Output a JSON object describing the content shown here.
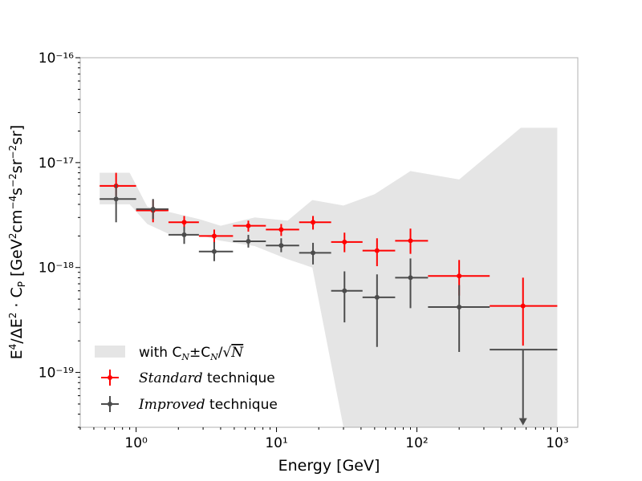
{
  "chart_data": {
    "type": "scatter",
    "title": "",
    "xlabel": "Energy [GeV]",
    "ylabel": "E⁴/ΔE² · C_P [GeV²cm⁻⁴s⁻²sr⁻²sr]",
    "xscale": "log",
    "yscale": "log",
    "xlim": [
      0.4,
      1400
    ],
    "ylim": [
      3e-20,
      1e-16
    ],
    "x_ticks": [
      {
        "value": 1,
        "label": "10⁰"
      },
      {
        "value": 10,
        "label": "10¹"
      },
      {
        "value": 100,
        "label": "10²"
      },
      {
        "value": 1000,
        "label": "10³"
      }
    ],
    "y_ticks": [
      {
        "value": 1e-19,
        "label": "10⁻¹⁹"
      },
      {
        "value": 1e-18,
        "label": "10⁻¹⁸"
      },
      {
        "value": 1e-17,
        "label": "10⁻¹⁷"
      },
      {
        "value": 1e-16,
        "label": "10⁻¹⁶"
      }
    ],
    "band": {
      "name": "with C_N±C_N/√N",
      "color": "#e5e5e5",
      "x": [
        0.55,
        0.9,
        1.2,
        1.7,
        2.8,
        4.0,
        7.0,
        12.0,
        18.0,
        30.0,
        50.0,
        90.0,
        200.0,
        550.0,
        1000.0
      ],
      "upper": [
        8e-18,
        8e-18,
        3.8e-18,
        3.4e-18,
        2.9e-18,
        2.5e-18,
        3e-18,
        2.8e-18,
        4.4e-18,
        3.9e-18,
        5e-18,
        8.3e-18,
        6.9e-18,
        2.15e-17,
        2.15e-17
      ],
      "lower": [
        4e-18,
        4e-18,
        2.6e-18,
        2.1e-18,
        2.05e-18,
        1.8e-18,
        1.6e-18,
        1.2e-18,
        1e-18,
        3e-20,
        3e-20,
        3e-20,
        3e-20,
        3e-20,
        3e-20
      ]
    },
    "series": [
      {
        "name": "Standard",
        "legend_suffix": " technique",
        "color": "#ff0000",
        "points": [
          {
            "x": 0.72,
            "xlo": 0.55,
            "xhi": 1.0,
            "y": 6e-18,
            "ylo": 4.8e-18,
            "yhi": 8e-18
          },
          {
            "x": 1.32,
            "xlo": 1.0,
            "xhi": 1.7,
            "y": 3.5e-18,
            "ylo": 2.7e-18,
            "yhi": 4.4e-18
          },
          {
            "x": 2.2,
            "xlo": 1.7,
            "xhi": 2.8,
            "y": 2.7e-18,
            "ylo": 2.3e-18,
            "yhi": 3.1e-18
          },
          {
            "x": 3.6,
            "xlo": 2.8,
            "xhi": 4.9,
            "y": 2e-18,
            "ylo": 1.7e-18,
            "yhi": 2.3e-18
          },
          {
            "x": 6.3,
            "xlo": 4.9,
            "xhi": 8.4,
            "y": 2.5e-18,
            "ylo": 2.2e-18,
            "yhi": 2.8e-18
          },
          {
            "x": 10.8,
            "xlo": 8.4,
            "xhi": 14.5,
            "y": 2.3e-18,
            "ylo": 2e-18,
            "yhi": 2.6e-18
          },
          {
            "x": 18.2,
            "xlo": 14.5,
            "xhi": 24.5,
            "y": 2.7e-18,
            "ylo": 2.3e-18,
            "yhi": 3.1e-18
          },
          {
            "x": 30.5,
            "xlo": 24.5,
            "xhi": 41.0,
            "y": 1.75e-18,
            "ylo": 1.4e-18,
            "yhi": 2.15e-18
          },
          {
            "x": 52.0,
            "xlo": 41.0,
            "xhi": 70.0,
            "y": 1.45e-18,
            "ylo": 1.03e-18,
            "yhi": 1.9e-18
          },
          {
            "x": 90.0,
            "xlo": 70.0,
            "xhi": 120.0,
            "y": 1.8e-18,
            "ylo": 1.35e-18,
            "yhi": 2.35e-18
          },
          {
            "x": 200.0,
            "xlo": 120.0,
            "xhi": 330.0,
            "y": 8.3e-19,
            "ylo": 5.4e-19,
            "yhi": 1.18e-18
          },
          {
            "x": 570.0,
            "xlo": 330.0,
            "xhi": 1000.0,
            "y": 4.3e-19,
            "ylo": 1.8e-19,
            "yhi": 8e-19
          }
        ]
      },
      {
        "name": "Improved",
        "legend_suffix": " technique",
        "color": "#4c4c4c",
        "points": [
          {
            "x": 0.72,
            "xlo": 0.55,
            "xhi": 1.0,
            "y": 4.5e-18,
            "ylo": 2.7e-18,
            "yhi": 6.2e-18
          },
          {
            "x": 1.32,
            "xlo": 1.0,
            "xhi": 1.7,
            "y": 3.6e-18,
            "ylo": 2.9e-18,
            "yhi": 4.5e-18
          },
          {
            "x": 2.2,
            "xlo": 1.7,
            "xhi": 2.8,
            "y": 2.05e-18,
            "ylo": 1.68e-18,
            "yhi": 2.45e-18
          },
          {
            "x": 3.6,
            "xlo": 2.8,
            "xhi": 4.9,
            "y": 1.42e-18,
            "ylo": 1.15e-18,
            "yhi": 1.75e-18
          },
          {
            "x": 6.3,
            "xlo": 4.9,
            "xhi": 8.4,
            "y": 1.78e-18,
            "ylo": 1.55e-18,
            "yhi": 2.05e-18
          },
          {
            "x": 10.8,
            "xlo": 8.4,
            "xhi": 14.5,
            "y": 1.62e-18,
            "ylo": 1.4e-18,
            "yhi": 1.9e-18
          },
          {
            "x": 18.2,
            "xlo": 14.5,
            "xhi": 24.5,
            "y": 1.38e-18,
            "ylo": 1.07e-18,
            "yhi": 1.72e-18
          },
          {
            "x": 30.5,
            "xlo": 24.5,
            "xhi": 41.0,
            "y": 6e-19,
            "ylo": 3e-19,
            "yhi": 9.2e-19
          },
          {
            "x": 52.0,
            "xlo": 41.0,
            "xhi": 70.0,
            "y": 5.2e-19,
            "ylo": 1.75e-19,
            "yhi": 8.6e-19
          },
          {
            "x": 90.0,
            "xlo": 70.0,
            "xhi": 120.0,
            "y": 8e-19,
            "ylo": 4.1e-19,
            "yhi": 1.22e-18
          },
          {
            "x": 200.0,
            "xlo": 120.0,
            "xhi": 330.0,
            "y": 4.2e-19,
            "ylo": 1.57e-19,
            "yhi": 6.8e-19
          },
          {
            "x": 570.0,
            "xlo": 330.0,
            "xhi": 1000.0,
            "y": 1.65e-19,
            "ylo": 3.3e-20,
            "yhi": 1.65e-19,
            "upper_limit": true
          }
        ]
      }
    ],
    "legend": {
      "position": "lower-left",
      "band_label_prefix": "with C",
      "band_label_sub1": "N",
      "band_label_mid": "±C",
      "band_label_sub2": "N",
      "band_label_slash": "/",
      "band_label_root": "√",
      "band_label_n": "N"
    },
    "axis_text": {
      "ylabel_prefix": "E",
      "ylabel_sup1": "4",
      "ylabel_mid": "/ΔE",
      "ylabel_sup2": "2",
      "ylabel_dot": " · C",
      "ylabel_sub": "P",
      "ylabel_unit_open": " [GeV",
      "ylabel_sup3": "2",
      "ylabel_cm": "cm",
      "ylabel_sup4": "−4",
      "ylabel_s": "s",
      "ylabel_sup5": "−2",
      "ylabel_sr": "sr",
      "ylabel_sup6": "−2",
      "ylabel_close": "sr]"
    }
  }
}
